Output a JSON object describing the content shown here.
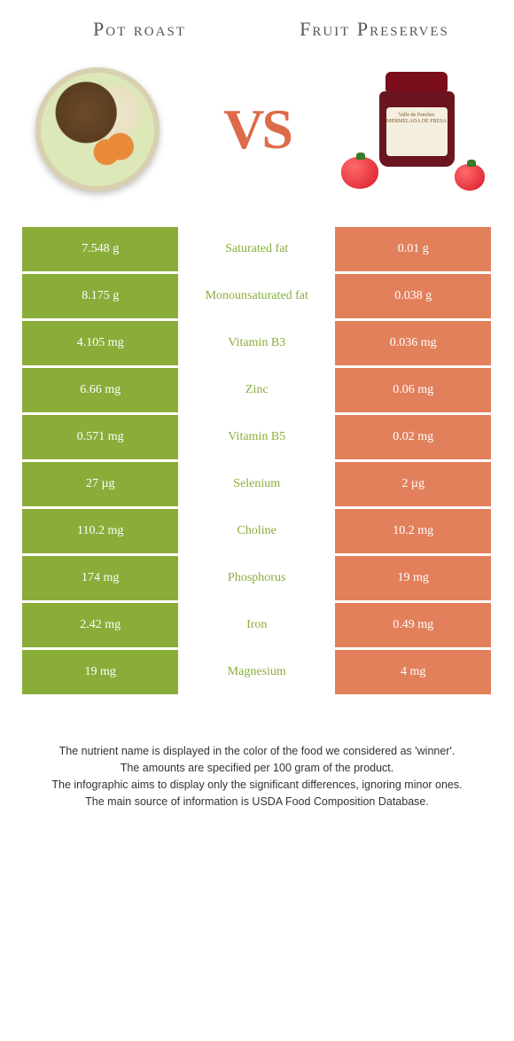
{
  "header": {
    "left_title": "Pot roast",
    "right_title": "Fruit Preserves",
    "vs_text": "VS"
  },
  "colors": {
    "left": "#8aad3a",
    "right": "#e2805c",
    "mid_left_text": "#8aad3a",
    "mid_right_text": "#e2805c",
    "row_bg": "#ffffff",
    "title_text": "#555555"
  },
  "jar_label": "Valle de Pancbes\nMERMELADA DE FRESA",
  "rows": [
    {
      "left": "7.548 g",
      "label": "Saturated fat",
      "right": "0.01 g",
      "winner": "left"
    },
    {
      "left": "8.175 g",
      "label": "Monounsaturated fat",
      "right": "0.038 g",
      "winner": "left"
    },
    {
      "left": "4.105 mg",
      "label": "Vitamin B3",
      "right": "0.036 mg",
      "winner": "left"
    },
    {
      "left": "6.66 mg",
      "label": "Zinc",
      "right": "0.06 mg",
      "winner": "left"
    },
    {
      "left": "0.571 mg",
      "label": "Vitamin B5",
      "right": "0.02 mg",
      "winner": "left"
    },
    {
      "left": "27 µg",
      "label": "Selenium",
      "right": "2 µg",
      "winner": "left"
    },
    {
      "left": "110.2 mg",
      "label": "Choline",
      "right": "10.2 mg",
      "winner": "left"
    },
    {
      "left": "174 mg",
      "label": "Phosphorus",
      "right": "19 mg",
      "winner": "left"
    },
    {
      "left": "2.42 mg",
      "label": "Iron",
      "right": "0.49 mg",
      "winner": "left"
    },
    {
      "left": "19 mg",
      "label": "Magnesium",
      "right": "4 mg",
      "winner": "left"
    }
  ],
  "footnotes": [
    "The nutrient name is displayed in the color of the food we considered as 'winner'.",
    "The amounts are specified per 100 gram of the product.",
    "The infographic aims to display only the significant differences, ignoring minor ones.",
    "The main source of information is USDA Food Composition Database."
  ]
}
